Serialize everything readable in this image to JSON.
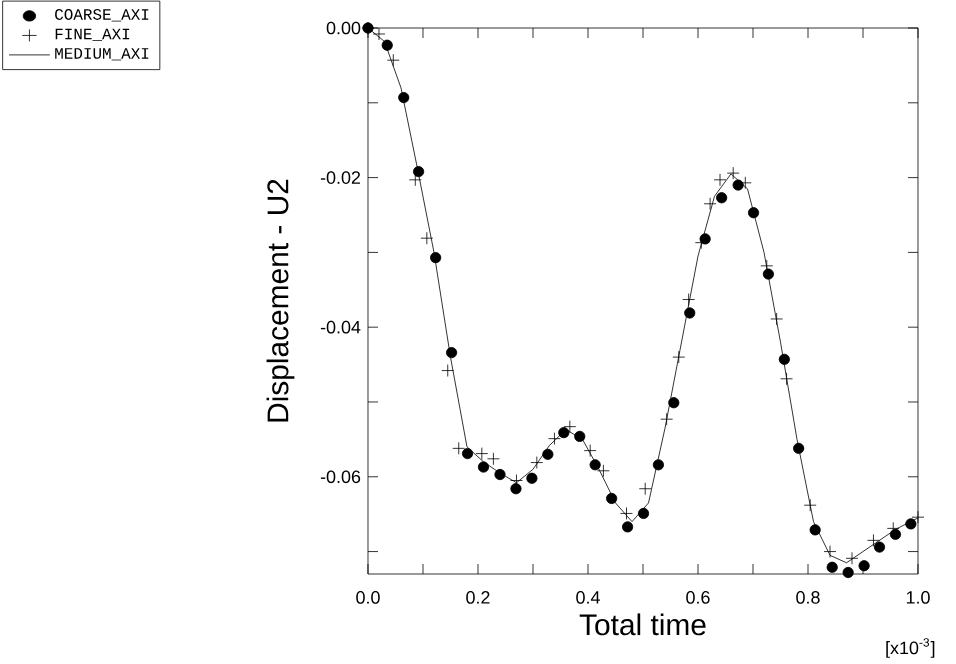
{
  "chart_data": {
    "type": "scatter",
    "xlabel": "Total time",
    "ylabel": "Displacement - U2",
    "annotations": [
      "[x10$^{-3}$]"
    ],
    "xlim": [
      0,
      1.0
    ],
    "ylim": [
      -0.073,
      0
    ],
    "xticks": [
      {
        "value": 0,
        "label": "0.0"
      },
      {
        "value": 0.1,
        "label": null
      },
      {
        "value": 0.2,
        "label": "0.2"
      },
      {
        "value": 0.3,
        "label": null
      },
      {
        "value": 0.4,
        "label": "0.4"
      },
      {
        "value": 0.5,
        "label": null
      },
      {
        "value": 0.6,
        "label": "0.6"
      },
      {
        "value": 0.7,
        "label": null
      },
      {
        "value": 0.8,
        "label": "0.8"
      },
      {
        "value": 0.9,
        "label": null
      },
      {
        "value": 1.0,
        "label": "1.0"
      }
    ],
    "yticks": [
      {
        "value": 0,
        "label": "0.00"
      },
      {
        "value": -0.01,
        "label": null
      },
      -0.02,
      {
        "value": -0.03,
        "label": null
      },
      -0.04,
      {
        "value": -0.05,
        "label": null
      },
      -0.06,
      {
        "value": -0.07,
        "label": null
      }
    ],
    "legend": "top left",
    "series": [
      {
        "name": "COARSE_AXI",
        "marker": "circle",
        "color": "#000000",
        "x": [
          0,
          0.035,
          0.065,
          0.092,
          0.123,
          0.152,
          0.181,
          0.21,
          0.24,
          0.269,
          0.298,
          0.327,
          0.356,
          0.385,
          0.413,
          0.443,
          0.472,
          0.501,
          0.528,
          0.556,
          0.585,
          0.613,
          0.643,
          0.673,
          0.701,
          0.728,
          0.757,
          0.783,
          0.813,
          0.844,
          0.873,
          0.902,
          0.93,
          0.959,
          0.987
        ],
        "values": [
          0,
          -0.0023,
          -0.0093,
          -0.0192,
          -0.0307,
          -0.0434,
          -0.0569,
          -0.0587,
          -0.0597,
          -0.0616,
          -0.0602,
          -0.057,
          -0.0541,
          -0.0546,
          -0.0584,
          -0.0629,
          -0.0667,
          -0.0649,
          -0.0584,
          -0.0501,
          -0.0381,
          -0.0282,
          -0.0227,
          -0.021,
          -0.0247,
          -0.0329,
          -0.0443,
          -0.0562,
          -0.0671,
          -0.0721,
          -0.0728,
          -0.0719,
          -0.0694,
          -0.0677,
          -0.0663
        ]
      },
      {
        "name": "FINE_AXI",
        "marker": "cross",
        "color": "#000000",
        "x": [
          0,
          0.02,
          0.046,
          0.086,
          0.107,
          0.145,
          0.165,
          0.207,
          0.228,
          0.27,
          0.307,
          0.339,
          0.367,
          0.404,
          0.428,
          0.47,
          0.504,
          0.543,
          0.565,
          0.583,
          0.606,
          0.622,
          0.64,
          0.664,
          0.686,
          0.725,
          0.743,
          0.761,
          0.804,
          0.84,
          0.88,
          0.919,
          0.955,
          1.0
        ],
        "values": [
          0,
          -0.0008,
          -0.0043,
          -0.0203,
          -0.0281,
          -0.0458,
          -0.0562,
          -0.0569,
          -0.0576,
          -0.0605,
          -0.0581,
          -0.0549,
          -0.0533,
          -0.0565,
          -0.0592,
          -0.0649,
          -0.0616,
          -0.0523,
          -0.044,
          -0.0363,
          -0.0287,
          -0.0235,
          -0.0203,
          -0.0194,
          -0.0207,
          -0.0318,
          -0.0389,
          -0.0469,
          -0.0638,
          -0.07,
          -0.0709,
          -0.0685,
          -0.0669,
          -0.0654
        ]
      },
      {
        "name": "MEDIUM_AXI",
        "type": "line",
        "marker": "none",
        "line_style": "solid",
        "color": "#000000",
        "x": [
          0,
          0.03,
          0.06,
          0.09,
          0.12,
          0.15,
          0.18,
          0.21,
          0.24,
          0.27,
          0.3,
          0.33,
          0.36,
          0.39,
          0.42,
          0.45,
          0.48,
          0.51,
          0.54,
          0.57,
          0.6,
          0.63,
          0.66,
          0.69,
          0.72,
          0.75,
          0.78,
          0.81,
          0.84,
          0.87,
          0.9,
          0.93,
          0.96,
          1.0
        ],
        "values": [
          0,
          -0.0018,
          -0.008,
          -0.0188,
          -0.03,
          -0.044,
          -0.056,
          -0.058,
          -0.0595,
          -0.0608,
          -0.059,
          -0.0558,
          -0.0537,
          -0.055,
          -0.059,
          -0.0635,
          -0.066,
          -0.0635,
          -0.0535,
          -0.042,
          -0.0305,
          -0.0225,
          -0.0195,
          -0.0215,
          -0.03,
          -0.042,
          -0.055,
          -0.066,
          -0.0705,
          -0.0715,
          -0.07,
          -0.0685,
          -0.067,
          -0.0655
        ]
      }
    ]
  }
}
